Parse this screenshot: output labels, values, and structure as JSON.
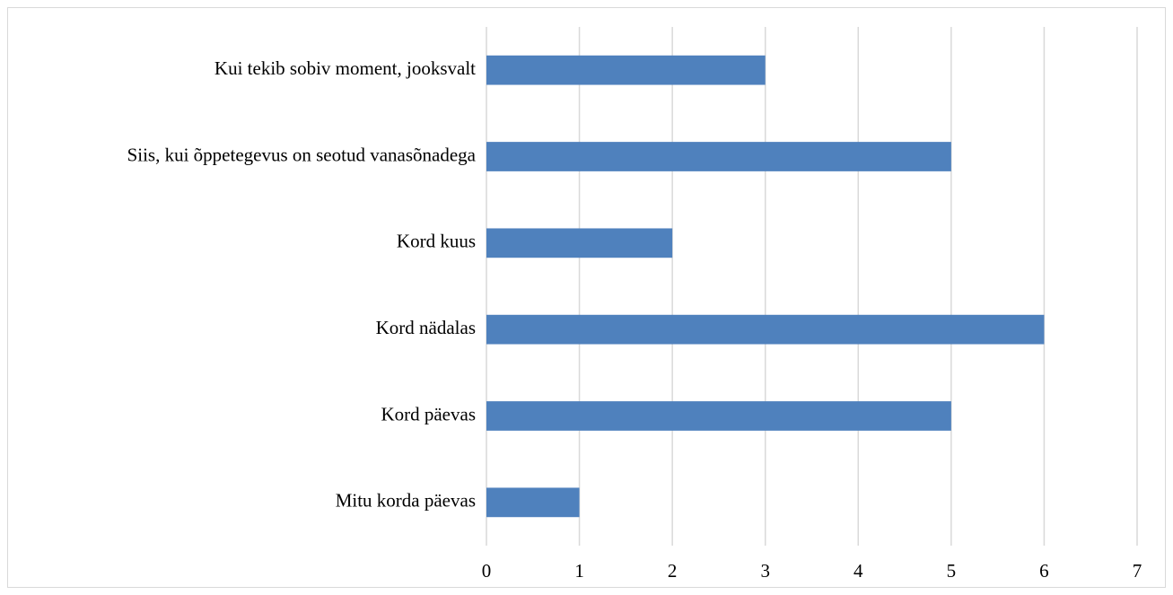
{
  "chart_data": {
    "type": "bar",
    "orientation": "horizontal",
    "categories": [
      "Kui tekib sobiv moment, jooksvalt",
      "Siis, kui õppetegevus on seotud vanasõnadega",
      "Kord kuus",
      "Kord nädalas",
      "Kord päevas",
      "Mitu korda päevas"
    ],
    "values": [
      3,
      5,
      2,
      6,
      5,
      1
    ],
    "color": "#4f81bd",
    "xlim": [
      0,
      7
    ],
    "xticks": [
      0,
      1,
      2,
      3,
      4,
      5,
      6,
      7
    ],
    "grid": true
  }
}
